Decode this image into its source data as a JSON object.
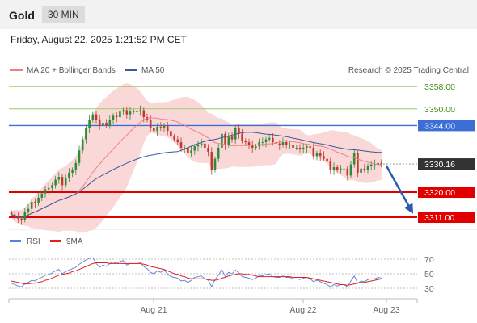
{
  "header": {
    "instrument": "Gold",
    "timeframe": "30 MIN",
    "datetime": "Friday, August 22, 2025 1:21:52 PM CET"
  },
  "legend": {
    "ma20_bb": "MA 20 + Bollinger Bands",
    "ma50": "MA 50",
    "rsi": "RSI",
    "ma9": "9MA",
    "credit": "Research © 2025 Trading Central"
  },
  "colors": {
    "up": "#2e8b3a",
    "down": "#c0392b",
    "ma20": "#f08080",
    "bollinger_fill": "#f8c8c8",
    "ma50": "#3a5a9a",
    "level_red": "#e00000",
    "level_blue": "#3b6fd6",
    "level_green": "#9ccc65",
    "current_price_box": "#333333",
    "arrow": "#2a5aa8",
    "rsi_line": "#5b7fd6",
    "rsi_ma": "#e02020"
  },
  "chart_data": [
    {
      "type": "candlestick",
      "title": "Gold",
      "ylim": [
        3302,
        3363
      ],
      "x_ticks": [
        "Aug 21",
        "Aug 22",
        "Aug 23"
      ],
      "levels": [
        {
          "value": 3358.0,
          "label": "3358.00",
          "style": "green"
        },
        {
          "value": 3350.0,
          "label": "3350.00",
          "style": "green"
        },
        {
          "value": 3344.0,
          "label": "3344.00",
          "style": "blue"
        },
        {
          "value": 3330.16,
          "label": "3330.16",
          "style": "current"
        },
        {
          "value": 3320.0,
          "label": "3320.00",
          "style": "red"
        },
        {
          "value": 3311.0,
          "label": "3311.00",
          "style": "red"
        }
      ],
      "close_series": [
        3312.0,
        3311.0,
        3310.5,
        3310.0,
        3313.0,
        3314.0,
        3316.5,
        3316.0,
        3318.0,
        3319.5,
        3321.0,
        3321.5,
        3322.5,
        3324.5,
        3325.5,
        3322.5,
        3325.0,
        3327.0,
        3328.0,
        3330.5,
        3335.0,
        3339.0,
        3343.0,
        3346.0,
        3348.0,
        3346.0,
        3344.0,
        3345.0,
        3344.0,
        3346.0,
        3347.5,
        3347.0,
        3349.0,
        3349.5,
        3348.0,
        3349.0,
        3349.0,
        3349.0,
        3349.5,
        3347.0,
        3346.0,
        3343.0,
        3342.0,
        3343.5,
        3343.0,
        3344.0,
        3342.0,
        3340.0,
        3339.0,
        3338.0,
        3336.0,
        3336.0,
        3334.0,
        3335.0,
        3336.5,
        3337.0,
        3337.5,
        3336.0,
        3334.5,
        3328.0,
        3332.0,
        3336.0,
        3341.0,
        3337.0,
        3340.0,
        3339.0,
        3343.0,
        3341.0,
        3338.5,
        3338.0,
        3337.0,
        3336.0,
        3336.5,
        3338.0,
        3338.0,
        3339.0,
        3339.5,
        3338.0,
        3337.5,
        3337.0,
        3338.0,
        3337.0,
        3337.0,
        3336.0,
        3336.0,
        3335.5,
        3336.0,
        3336.5,
        3336.0,
        3333.0,
        3334.0,
        3333.0,
        3332.0,
        3331.0,
        3328.0,
        3329.0,
        3328.0,
        3328.5,
        3328.5,
        3326.0,
        3330.0,
        3334.0,
        3327.0,
        3328.5,
        3328.0,
        3329.5,
        3330.0,
        3330.0,
        3330.5,
        3330.16
      ],
      "forecast_arrow": {
        "from": 3330.16,
        "to": 3311.0
      }
    },
    {
      "type": "line",
      "title": "RSI",
      "ylim": [
        20,
        80
      ],
      "y_ticks": [
        "70",
        "50",
        "30"
      ],
      "series": [
        {
          "name": "RSI",
          "values": [
            37,
            35,
            33,
            32,
            36,
            38,
            41,
            40,
            43,
            45,
            48,
            49,
            51,
            54,
            56,
            50,
            53,
            55,
            57,
            59,
            63,
            66,
            69,
            71,
            72,
            64,
            59,
            62,
            60,
            64,
            66,
            64,
            67,
            68,
            62,
            64,
            64,
            64,
            65,
            60,
            57,
            52,
            50,
            54,
            52,
            55,
            50,
            46,
            45,
            44,
            40,
            41,
            38,
            41,
            45,
            46,
            47,
            43,
            41,
            32,
            42,
            48,
            56,
            46,
            52,
            50,
            55,
            51,
            46,
            45,
            44,
            42,
            44,
            47,
            47,
            49,
            50,
            46,
            45,
            45,
            47,
            45,
            45,
            43,
            43,
            42,
            44,
            45,
            43,
            39,
            41,
            39,
            37,
            35,
            32,
            35,
            33,
            35,
            35,
            32,
            40,
            47,
            37,
            40,
            39,
            42,
            43,
            43,
            45,
            44
          ]
        },
        {
          "name": "9MA",
          "values": [
            40,
            39,
            38,
            37,
            36,
            36,
            37,
            37,
            38,
            39,
            41,
            42,
            44,
            46,
            48,
            49,
            50,
            51,
            53,
            54,
            56,
            58,
            60,
            62,
            64,
            65,
            65,
            65,
            65,
            64,
            64,
            64,
            64,
            64,
            64,
            64,
            64,
            64,
            64,
            63,
            62,
            60,
            59,
            58,
            57,
            56,
            54,
            52,
            50,
            49,
            47,
            46,
            44,
            43,
            43,
            43,
            43,
            43,
            42,
            41,
            41,
            42,
            44,
            45,
            47,
            48,
            49,
            50,
            50,
            49,
            49,
            48,
            47,
            46,
            46,
            46,
            46,
            46,
            46,
            46,
            46,
            46,
            46,
            45,
            45,
            45,
            45,
            45,
            44,
            43,
            42,
            41,
            40,
            39,
            38,
            37,
            36,
            35,
            35,
            34,
            35,
            36,
            37,
            38,
            38,
            39,
            40,
            41,
            42,
            43
          ]
        }
      ]
    }
  ]
}
